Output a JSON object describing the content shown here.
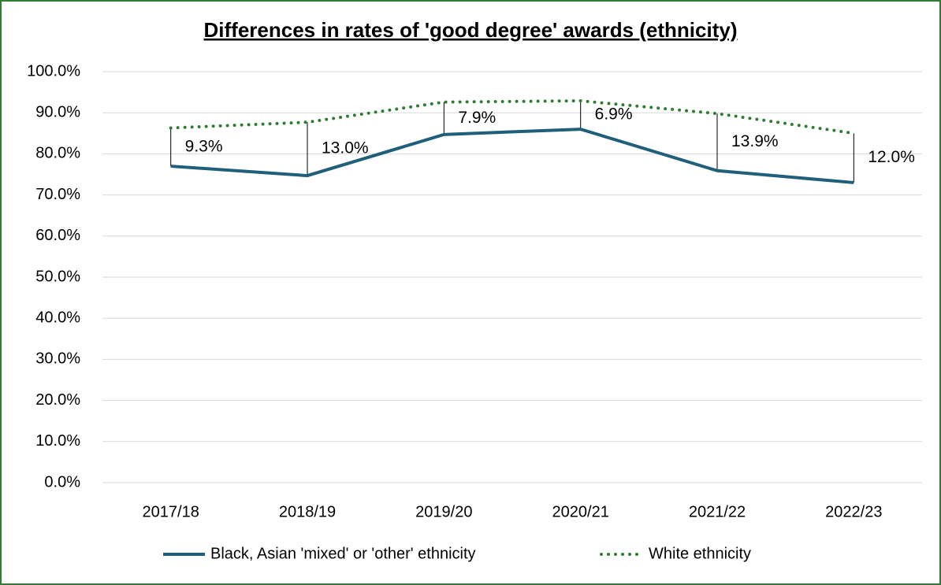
{
  "chart_data": {
    "type": "line",
    "title": "Differences in rates of 'good degree' awards (ethnicity)",
    "categories": [
      "2017/18",
      "2018/19",
      "2019/20",
      "2020/21",
      "2021/22",
      "2022/23"
    ],
    "series": [
      {
        "name": "Black, Asian 'mixed' or 'other' ethnicity",
        "color": "#1f5f7a",
        "style": "solid",
        "values": [
          77.0,
          74.7,
          84.7,
          86.0,
          75.9,
          73.0
        ]
      },
      {
        "name": "White ethnicity",
        "color": "#2e7d32",
        "style": "dotted",
        "values": [
          86.3,
          87.7,
          92.6,
          92.9,
          89.8,
          85.0
        ]
      }
    ],
    "differences": {
      "values": [
        9.3,
        13.0,
        7.9,
        6.9,
        13.9,
        12.0
      ],
      "value_labels": [
        "9.3%",
        "13.0%",
        "7.9%",
        "6.9%",
        "13.9%",
        "12.0%"
      ]
    },
    "ylim": [
      0,
      100
    ],
    "yticks": [
      {
        "value": 0,
        "label": "0.0%"
      },
      {
        "value": 10,
        "label": "10.0%"
      },
      {
        "value": 20,
        "label": "20.0%"
      },
      {
        "value": 30,
        "label": "30.0%"
      },
      {
        "value": 40,
        "label": "40.0%"
      },
      {
        "value": 50,
        "label": "50.0%"
      },
      {
        "value": 60,
        "label": "60.0%"
      },
      {
        "value": 70,
        "label": "70.0%"
      },
      {
        "value": 80,
        "label": "80.0%"
      },
      {
        "value": 90,
        "label": "90.0%"
      },
      {
        "value": 100,
        "label": "100.0%"
      }
    ],
    "grid": true,
    "legend": "bottom"
  }
}
